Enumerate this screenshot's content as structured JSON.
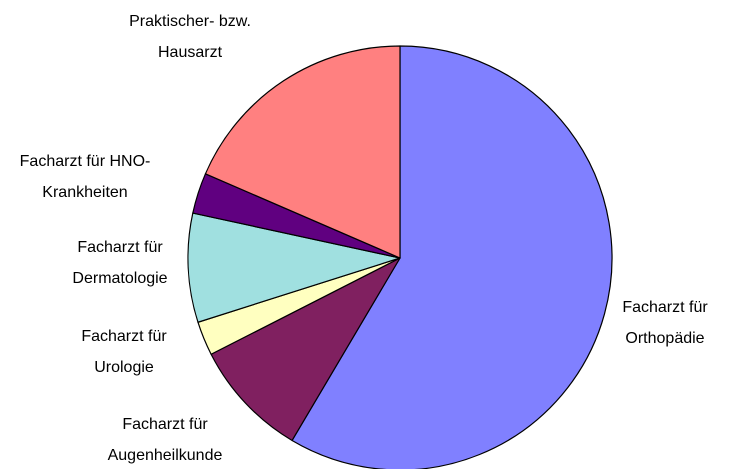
{
  "chart_data": {
    "type": "pie",
    "categories": [
      [
        "Facharzt für",
        "Orthopädie"
      ],
      [
        "Facharzt für",
        "Augenheilkunde"
      ],
      [
        "Facharzt für",
        "Urologie"
      ],
      [
        "Facharzt für",
        "Dermatologie"
      ],
      [
        "Facharzt für HNO-",
        "Krankheiten"
      ],
      [
        "Praktischer- bzw.",
        "Hausarzt"
      ]
    ],
    "values": [
      58.5,
      9,
      2.6,
      8.3,
      3.1,
      18.5
    ],
    "colors": [
      "#8080ff",
      "#802060",
      "#ffffc0",
      "#a0e0e0",
      "#600080",
      "#ff8080"
    ]
  }
}
